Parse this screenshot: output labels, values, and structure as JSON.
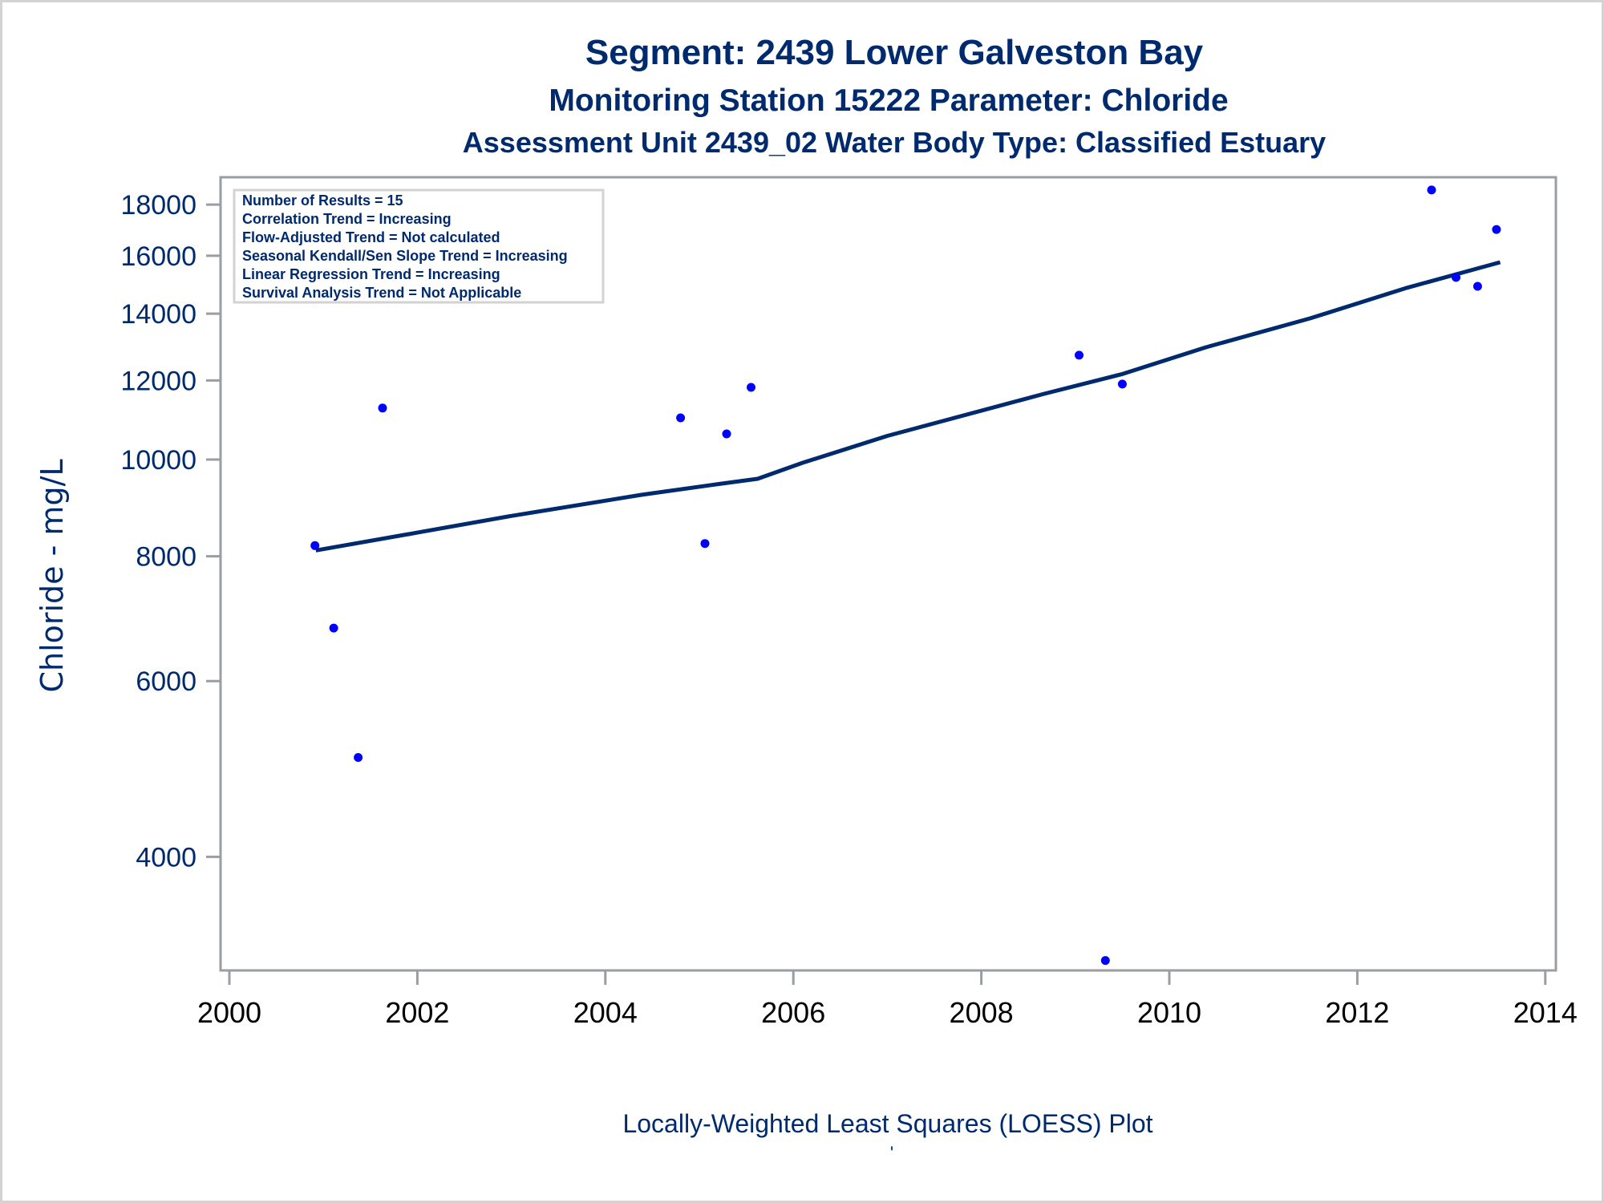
{
  "titles": {
    "line1": "Segment: 2439  Lower Galveston Bay",
    "line2": "Monitoring Station 15222 Parameter: Chloride",
    "line3": "Assessment Unit 2439_02   Water Body Type: Classified Estuary"
  },
  "legend_box": {
    "lines": [
      "Number of Results = 15",
      "Correlation Trend = Increasing",
      "Flow-Adjusted Trend = Not calculated",
      "Seasonal Kendall/Sen Slope Trend = Increasing",
      "Linear Regression Trend = Increasing",
      "Survival Analysis Trend = Not Applicable"
    ]
  },
  "caption": "Locally-Weighted Least Squares (LOESS) Plot",
  "footnote_mark": "'",
  "colors": {
    "text": "#002a6e",
    "points": "#0000ff",
    "loess_line": "#002a6e",
    "axis": "#9a9ea2",
    "legend_border": "#d3d3d3"
  },
  "chart_data": {
    "type": "scatter",
    "title": "Segment: 2439  Lower Galveston Bay",
    "subtitle": "Monitoring Station 15222 Parameter: Chloride / Assessment Unit 2439_02   Water Body Type: Classified Estuary",
    "xlabel": "Locally-Weighted Least Squares (LOESS) Plot",
    "ylabel": "Chloride - mg/L",
    "yscale": "log",
    "xlim": [
      2000,
      2014
    ],
    "ylim": [
      3080,
      19170
    ],
    "x_ticks": [
      2000,
      2002,
      2004,
      2006,
      2008,
      2010,
      2012,
      2014
    ],
    "y_ticks": [
      4000,
      6000,
      8000,
      10000,
      12000,
      14000,
      16000,
      18000
    ],
    "grid": false,
    "legend_position": "top-left",
    "series": [
      {
        "name": "Chloride measurements",
        "kind": "scatter",
        "points": [
          {
            "x": 2000.91,
            "y": 8200
          },
          {
            "x": 2001.11,
            "y": 6780
          },
          {
            "x": 2001.37,
            "y": 5030
          },
          {
            "x": 2001.63,
            "y": 11260
          },
          {
            "x": 2004.8,
            "y": 11010
          },
          {
            "x": 2005.06,
            "y": 8240
          },
          {
            "x": 2005.29,
            "y": 10610
          },
          {
            "x": 2005.55,
            "y": 11810
          },
          {
            "x": 2009.04,
            "y": 12720
          },
          {
            "x": 2009.32,
            "y": 3150
          },
          {
            "x": 2009.5,
            "y": 11900
          },
          {
            "x": 2012.79,
            "y": 18620
          },
          {
            "x": 2013.05,
            "y": 15220
          },
          {
            "x": 2013.28,
            "y": 14910
          },
          {
            "x": 2013.48,
            "y": 17000
          }
        ]
      },
      {
        "name": "LOESS fit",
        "kind": "line",
        "points": [
          {
            "x": 2000.92,
            "y": 8110
          },
          {
            "x": 2002.0,
            "y": 8450
          },
          {
            "x": 2003.0,
            "y": 8780
          },
          {
            "x": 2004.39,
            "y": 9220
          },
          {
            "x": 2005.2,
            "y": 9450
          },
          {
            "x": 2005.62,
            "y": 9566
          },
          {
            "x": 2006.1,
            "y": 9926
          },
          {
            "x": 2007.0,
            "y": 10560
          },
          {
            "x": 2008.67,
            "y": 11637
          },
          {
            "x": 2009.5,
            "y": 12180
          },
          {
            "x": 2010.39,
            "y": 12955
          },
          {
            "x": 2011.5,
            "y": 13850
          },
          {
            "x": 2012.53,
            "y": 14860
          },
          {
            "x": 2013.52,
            "y": 15760
          }
        ]
      }
    ]
  }
}
